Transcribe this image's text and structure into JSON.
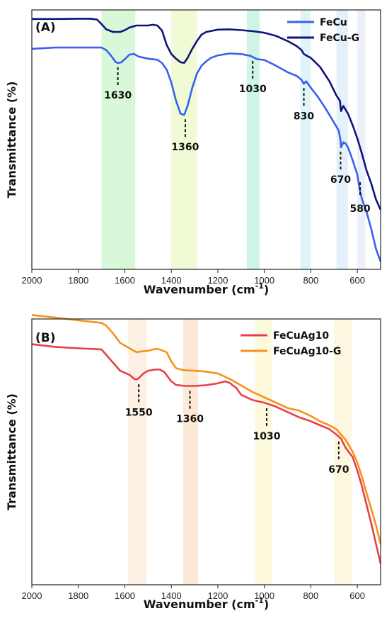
{
  "chart_data": [
    {
      "panel": "(A)",
      "type": "line",
      "xlabel": "Wavenumber",
      "xunit_base": "(cm",
      "xunit_exp": "-1",
      "xunit_close": ")",
      "ylabel": "Transmittance (%)",
      "xlim": [
        2000,
        500
      ],
      "ylim": [
        0,
        100
      ],
      "grid": false,
      "legend_position": "top-right",
      "x_ticks": [
        "2000",
        "1800",
        "1600",
        "1400",
        "1200",
        "1000",
        "800",
        "600"
      ],
      "x_tick_values": [
        2000,
        1800,
        1600,
        1400,
        1200,
        1000,
        800,
        600
      ],
      "bands": [
        {
          "from": 1700,
          "to": 1555,
          "color": "#b9f0b9"
        },
        {
          "from": 1400,
          "to": 1290,
          "color": "#e3f7b4"
        },
        {
          "from": 1075,
          "to": 1020,
          "color": "#a6eccf"
        },
        {
          "from": 845,
          "to": 800,
          "color": "#c6ecf5"
        },
        {
          "from": 690,
          "to": 640,
          "color": "#cfe3f7"
        },
        {
          "from": 600,
          "to": 565,
          "color": "#dfe3f7"
        }
      ],
      "series": [
        {
          "name": "FeCu",
          "color": "#3a5ff0",
          "x": [
            2000,
            1900,
            1800,
            1700,
            1680,
            1660,
            1640,
            1630,
            1615,
            1600,
            1580,
            1560,
            1540,
            1500,
            1460,
            1440,
            1420,
            1400,
            1380,
            1360,
            1345,
            1330,
            1310,
            1290,
            1270,
            1250,
            1230,
            1200,
            1150,
            1100,
            1060,
            1030,
            1000,
            950,
            900,
            860,
            840,
            830,
            820,
            800,
            770,
            740,
            710,
            690,
            680,
            672,
            670,
            660,
            650,
            640,
            620,
            600,
            590,
            580,
            560,
            540,
            520,
            500
          ],
          "y": [
            85,
            85.5,
            85.5,
            85.5,
            84.5,
            82.5,
            80,
            79.5,
            79.8,
            81,
            82.8,
            83,
            82,
            81.2,
            80.8,
            79.5,
            77,
            72,
            65,
            60,
            59.5,
            63,
            70,
            75.5,
            78.5,
            80.2,
            81.5,
            82.5,
            83.2,
            83,
            82.3,
            81,
            80.7,
            78.5,
            76,
            74.5,
            73,
            71.5,
            72.5,
            70,
            66.5,
            62.5,
            58,
            55,
            53.5,
            49.5,
            47,
            49,
            48.5,
            47,
            42,
            36.5,
            31,
            27,
            22,
            15.5,
            8,
            3
          ]
        },
        {
          "name": "FeCu-G",
          "color": "#10137a",
          "x": [
            2000,
            1900,
            1800,
            1750,
            1720,
            1700,
            1680,
            1650,
            1620,
            1600,
            1580,
            1550,
            1500,
            1480,
            1460,
            1440,
            1420,
            1400,
            1380,
            1360,
            1345,
            1330,
            1310,
            1290,
            1270,
            1250,
            1200,
            1150,
            1100,
            1050,
            1000,
            950,
            900,
            860,
            840,
            830,
            800,
            760,
            720,
            690,
            675,
            670,
            660,
            640,
            620,
            600,
            580,
            560,
            540,
            520,
            500
          ],
          "y": [
            96.5,
            96.5,
            96.6,
            96.6,
            96.3,
            94.5,
            92.5,
            91.5,
            91.5,
            92.2,
            93.2,
            94,
            94,
            94.3,
            94,
            92,
            86.5,
            83,
            81.2,
            79.8,
            79.6,
            81.5,
            85,
            88,
            90.5,
            91.5,
            92.4,
            92.5,
            92.2,
            91.8,
            91.2,
            90,
            88,
            86,
            84.5,
            83,
            81.5,
            78,
            72.5,
            67,
            65,
            61,
            63,
            60,
            55.5,
            50.5,
            44.5,
            38,
            33,
            27,
            23
          ]
        }
      ],
      "annotations": [
        {
          "label": "1630",
          "x": 1630,
          "curve_y": 79.5,
          "direction": "below"
        },
        {
          "label": "1360",
          "x": 1340,
          "curve_y": 59.5,
          "direction": "below"
        },
        {
          "label": "1030",
          "x": 1050,
          "curve_y": 82,
          "direction": "below"
        },
        {
          "label": "830",
          "x": 830,
          "curve_y": 71.5,
          "direction": "below"
        },
        {
          "label": "670",
          "x": 672,
          "curve_y": 47,
          "direction": "below"
        },
        {
          "label": "580",
          "x": 588,
          "curve_y": 27,
          "direction": "above"
        }
      ]
    },
    {
      "panel": "(B)",
      "type": "line",
      "xlabel": "Wavenumber",
      "xunit_base": "(cm",
      "xunit_exp": "-1",
      "xunit_close": ")",
      "ylabel": "Transmittance (%)",
      "xlim": [
        2000,
        500
      ],
      "ylim": [
        0,
        100
      ],
      "grid": false,
      "legend_position": "top-right",
      "x_ticks": [
        "2000",
        "1800",
        "1600",
        "1400",
        "1200",
        "1000",
        "800",
        "600"
      ],
      "x_tick_values": [
        2000,
        1800,
        1600,
        1400,
        1200,
        1000,
        800,
        600
      ],
      "bands": [
        {
          "from": 1585,
          "to": 1505,
          "color": "#fbe3cf"
        },
        {
          "from": 1350,
          "to": 1285,
          "color": "#f9d9b5"
        },
        {
          "from": 1040,
          "to": 965,
          "color": "#fbf4bf"
        },
        {
          "from": 700,
          "to": 625,
          "color": "#fdf1c4"
        }
      ],
      "series": [
        {
          "name": "FeCuAg10",
          "color": "#e8404a",
          "x": [
            2000,
            1900,
            1800,
            1700,
            1680,
            1650,
            1620,
            1580,
            1560,
            1550,
            1540,
            1520,
            1500,
            1470,
            1450,
            1430,
            1400,
            1380,
            1360,
            1340,
            1300,
            1250,
            1200,
            1170,
            1150,
            1120,
            1100,
            1050,
            1000,
            950,
            900,
            850,
            800,
            760,
            720,
            690,
            670,
            650,
            620,
            600,
            580,
            560,
            540,
            520,
            500
          ],
          "y": [
            90.5,
            89.5,
            89,
            88.5,
            86.5,
            83.5,
            80.5,
            79,
            77.5,
            77.2,
            77.8,
            79.5,
            80.5,
            81,
            81,
            80,
            76.5,
            75.2,
            75,
            74.8,
            74.8,
            75.1,
            75.8,
            76.5,
            76,
            74,
            71.5,
            69.5,
            68.5,
            67,
            65,
            63,
            61.5,
            60,
            58.5,
            56.5,
            55,
            51.5,
            48,
            43,
            37,
            30,
            23,
            15.5,
            8
          ]
        },
        {
          "name": "FeCuAg10-G",
          "color": "#f59218",
          "x": [
            2000,
            1900,
            1800,
            1700,
            1680,
            1650,
            1620,
            1580,
            1550,
            1530,
            1500,
            1480,
            1460,
            1440,
            1420,
            1400,
            1380,
            1360,
            1340,
            1300,
            1250,
            1200,
            1150,
            1100,
            1050,
            1000,
            950,
            900,
            850,
            800,
            760,
            720,
            690,
            670,
            650,
            620,
            600,
            580,
            560,
            540,
            520,
            500
          ],
          "y": [
            101.5,
            100.5,
            99.5,
            98.5,
            97.5,
            94.5,
            91,
            89,
            87.5,
            87.8,
            88,
            88.5,
            88.8,
            88.2,
            87.5,
            84,
            81.5,
            81,
            80.7,
            80.5,
            80.2,
            79.5,
            77.5,
            75,
            72.5,
            70.5,
            68.5,
            66.5,
            65.5,
            63.5,
            61.5,
            60,
            58.5,
            56.5,
            54.5,
            50,
            46,
            40.5,
            34.5,
            28.5,
            22.5,
            15.5
          ]
        }
      ],
      "annotations": [
        {
          "label": "1550",
          "x": 1540,
          "curve_y": 77,
          "direction": "below"
        },
        {
          "label": "1360",
          "x": 1320,
          "curve_y": 74.5,
          "direction": "below"
        },
        {
          "label": "1030",
          "x": 990,
          "curve_y": 68,
          "direction": "below"
        },
        {
          "label": "670",
          "x": 680,
          "curve_y": 55.5,
          "direction": "below"
        }
      ]
    }
  ]
}
